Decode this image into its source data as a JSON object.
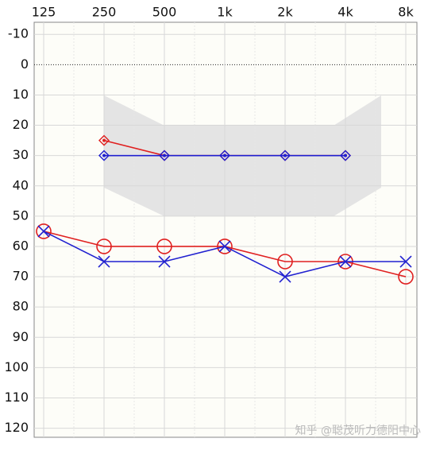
{
  "chart_data": {
    "type": "line",
    "categories": [
      "125",
      "250",
      "500",
      "1k",
      "2k",
      "4k",
      "8k"
    ],
    "ylim": [
      -14,
      123
    ],
    "yticks": [
      -10,
      0,
      10,
      20,
      30,
      40,
      50,
      60,
      70,
      80,
      90,
      100,
      110,
      120
    ],
    "y_inverted": true,
    "grid": true,
    "series": [
      {
        "color": "#e02020",
        "marker": "circle",
        "values": [
          55,
          60,
          60,
          60,
          65,
          65,
          70
        ]
      },
      {
        "color": "#2020d0",
        "marker": "x",
        "values": [
          55,
          65,
          65,
          60,
          70,
          65,
          65
        ]
      },
      {
        "color": "#e02020",
        "marker": "diamond",
        "values": [
          null,
          25,
          30,
          30,
          30,
          30,
          null
        ]
      },
      {
        "color": "#2020d0",
        "marker": "diamond",
        "values": [
          null,
          30,
          30,
          30,
          30,
          30,
          null
        ]
      }
    ],
    "watermark": "知乎 @聪茂听力德阳中心"
  }
}
